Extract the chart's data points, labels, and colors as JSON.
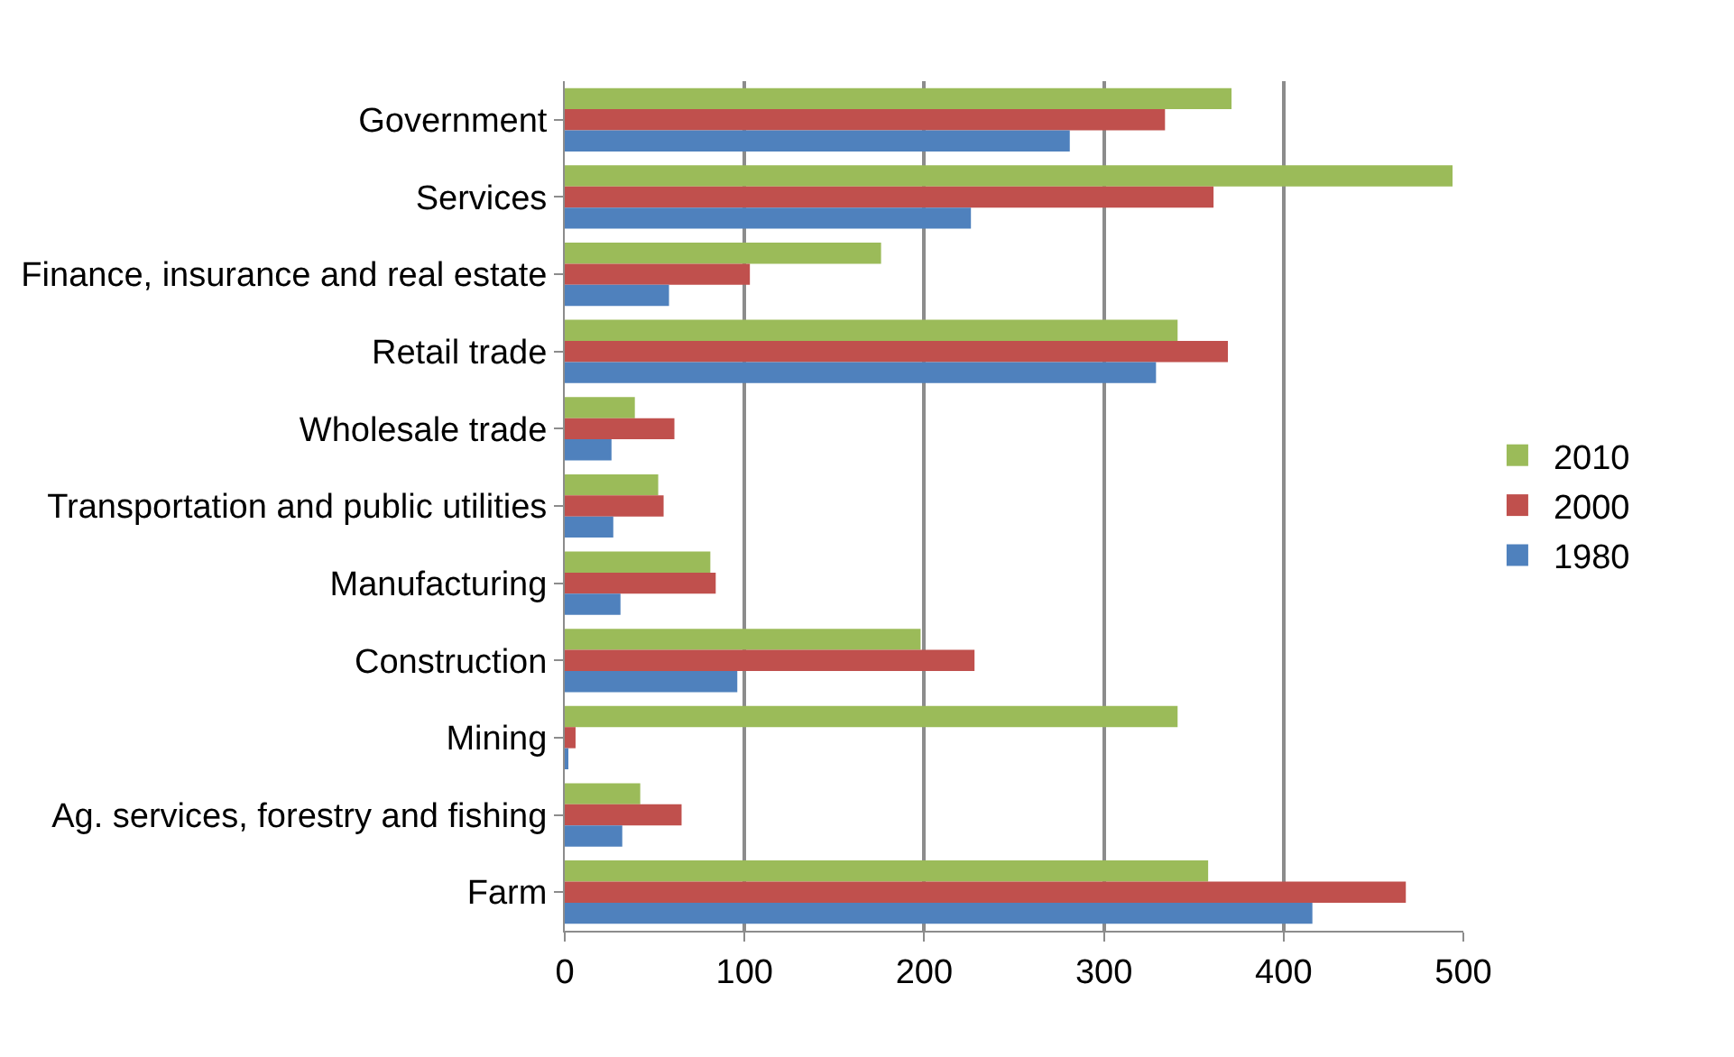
{
  "chart_data": {
    "type": "bar",
    "orientation": "horizontal",
    "categories": [
      "Government",
      "Services",
      "Finance, insurance and real estate",
      "Retail trade",
      "Wholesale trade",
      "Transportation and public utilities",
      "Manufacturing",
      "Construction",
      "Mining",
      "Ag. services, forestry and fishing",
      "Farm"
    ],
    "series": [
      {
        "name": "2010",
        "color": "#9bbb59",
        "values": [
          371,
          494,
          176,
          341,
          39,
          52,
          81,
          198,
          341,
          42,
          358
        ]
      },
      {
        "name": "2000",
        "color": "#c0504d",
        "values": [
          334,
          361,
          103,
          369,
          61,
          55,
          84,
          228,
          6,
          65,
          468
        ]
      },
      {
        "name": "1980",
        "color": "#4f81bd",
        "values": [
          281,
          226,
          58,
          329,
          26,
          27,
          31,
          96,
          2,
          32,
          416
        ]
      }
    ],
    "xlim": [
      0,
      500
    ],
    "xticks": [
      0,
      100,
      200,
      300,
      400,
      500
    ],
    "grid": "x",
    "legend": "right"
  }
}
